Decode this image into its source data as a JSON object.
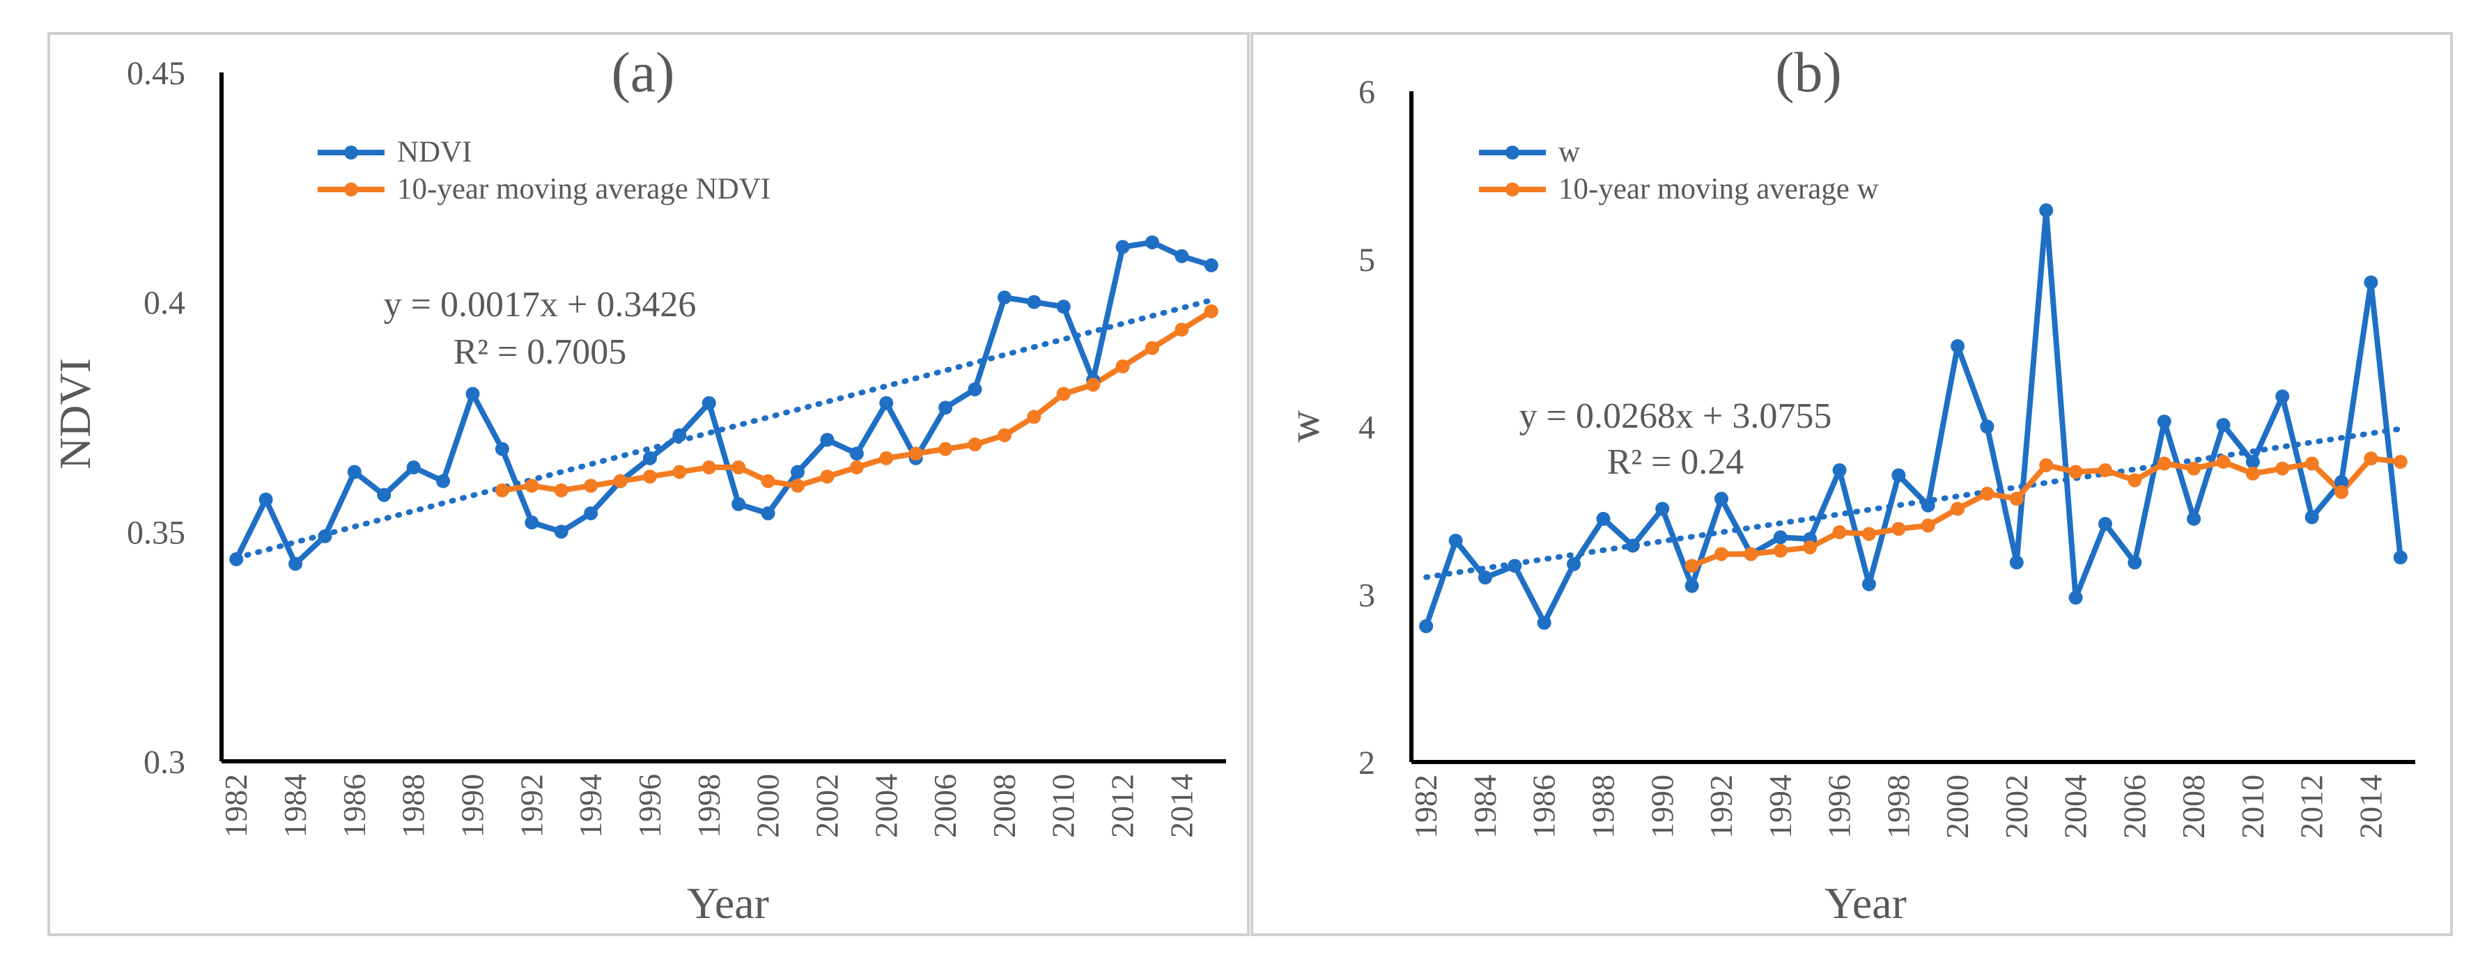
{
  "chart_data": [
    {
      "type": "line",
      "title": "(a)",
      "xlabel": "Year",
      "ylabel": "NDVI",
      "ylim": [
        0.3,
        0.45
      ],
      "yticks": [
        "0.45",
        "0.4",
        "0.35",
        "0.3"
      ],
      "xticks": [
        "1982",
        "1984",
        "1986",
        "1988",
        "1990",
        "1992",
        "1994",
        "1996",
        "1998",
        "2000",
        "2002",
        "2004",
        "2006",
        "2008",
        "2010",
        "2012",
        "2014"
      ],
      "x": [
        1982,
        1983,
        1984,
        1985,
        1986,
        1987,
        1988,
        1989,
        1990,
        1991,
        1992,
        1993,
        1994,
        1995,
        1996,
        1997,
        1998,
        1999,
        2000,
        2001,
        2002,
        2003,
        2004,
        2005,
        2006,
        2007,
        2008,
        2009,
        2010,
        2011,
        2012,
        2013,
        2014,
        2015
      ],
      "legend": "top-left",
      "grid": false,
      "series": [
        {
          "name": "NDVI",
          "color": "#1f6fc5",
          "values": [
            0.344,
            0.357,
            0.343,
            0.349,
            0.363,
            0.358,
            0.364,
            0.361,
            0.38,
            0.368,
            0.352,
            0.35,
            0.354,
            0.361,
            0.366,
            0.371,
            0.378,
            0.356,
            0.354,
            0.363,
            0.37,
            0.367,
            0.378,
            0.366,
            0.377,
            0.381,
            0.401,
            0.4,
            0.399,
            0.383,
            0.412,
            0.413,
            0.41,
            0.408
          ]
        },
        {
          "name": "10-year moving average NDVI",
          "color": "#f47b20",
          "values": [
            null,
            null,
            null,
            null,
            null,
            null,
            null,
            null,
            null,
            0.359,
            0.36,
            0.359,
            0.36,
            0.361,
            0.362,
            0.363,
            0.364,
            0.364,
            0.361,
            0.36,
            0.362,
            0.364,
            0.366,
            0.367,
            0.368,
            0.369,
            0.371,
            0.375,
            0.38,
            0.382,
            0.386,
            0.39,
            0.394,
            0.398
          ]
        }
      ],
      "trendline": {
        "color": "#1f6fc5",
        "slope": 0.0017,
        "intercept": 0.3426
      },
      "equation": "y = 0.0017x + 0.3426",
      "r2": "R² = 0.7005"
    },
    {
      "type": "line",
      "title": "(b)",
      "xlabel": "Year",
      "ylabel": "w",
      "ylim": [
        2,
        6
      ],
      "yticks": [
        "6",
        "5",
        "4",
        "3",
        "2"
      ],
      "xticks": [
        "1982",
        "1984",
        "1986",
        "1988",
        "1990",
        "1992",
        "1994",
        "1996",
        "1998",
        "2000",
        "2002",
        "2004",
        "2006",
        "2008",
        "2010",
        "2012",
        "2014"
      ],
      "x": [
        1982,
        1983,
        1984,
        1985,
        1986,
        1987,
        1988,
        1989,
        1990,
        1991,
        1992,
        1993,
        1994,
        1995,
        1996,
        1997,
        1998,
        1999,
        2000,
        2001,
        2002,
        2003,
        2004,
        2005,
        2006,
        2007,
        2008,
        2009,
        2010,
        2011,
        2012,
        2013,
        2014,
        2015
      ],
      "legend": "top-left",
      "grid": false,
      "series": [
        {
          "name": "w",
          "color": "#1f6fc5",
          "values": [
            2.81,
            3.32,
            3.1,
            3.17,
            2.83,
            3.18,
            3.45,
            3.29,
            3.51,
            3.05,
            3.57,
            3.24,
            3.34,
            3.33,
            3.74,
            3.06,
            3.71,
            3.53,
            4.48,
            4.0,
            3.19,
            5.29,
            2.98,
            3.42,
            3.19,
            4.03,
            3.45,
            4.01,
            3.79,
            4.18,
            3.46,
            3.67,
            4.86,
            3.22
          ]
        },
        {
          "name": "10-year moving average w",
          "color": "#f47b20",
          "values": [
            null,
            null,
            null,
            null,
            null,
            null,
            null,
            null,
            null,
            3.17,
            3.24,
            3.24,
            3.26,
            3.28,
            3.37,
            3.36,
            3.39,
            3.41,
            3.51,
            3.6,
            3.57,
            3.77,
            3.73,
            3.74,
            3.68,
            3.78,
            3.75,
            3.79,
            3.72,
            3.75,
            3.78,
            3.61,
            3.81,
            3.79
          ]
        }
      ],
      "trendline": {
        "color": "#1f6fc5",
        "slope": 0.0268,
        "intercept": 3.0755
      },
      "equation": "y = 0.0268x + 3.0755",
      "r2": "R² = 0.24"
    }
  ]
}
